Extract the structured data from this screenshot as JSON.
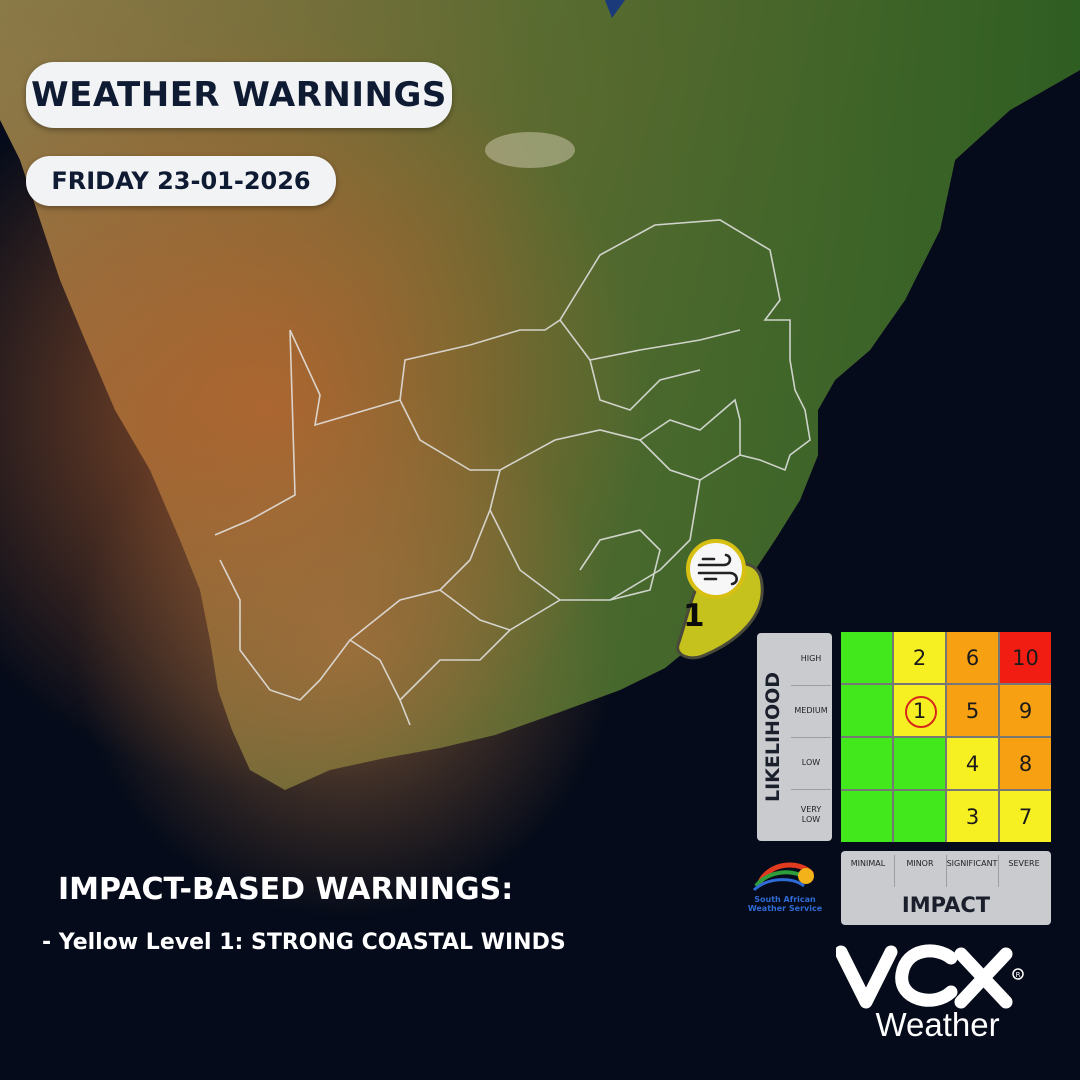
{
  "header": {
    "title": "WEATHER WARNINGS",
    "date": "FRIDAY 23-01-2026"
  },
  "warnings": {
    "heading": "IMPACT-BASED WARNINGS:",
    "items": [
      "- Yellow Level 1: STRONG COASTAL WINDS"
    ],
    "map_marker": {
      "level": "1",
      "icon": "wind-icon",
      "color": "#c6c21d",
      "region": "KwaZulu-Natal coast"
    }
  },
  "matrix": {
    "likelihood_title": "LIKELIHOOD",
    "impact_title": "IMPACT",
    "likelihood_levels": [
      "HIGH",
      "MEDIUM",
      "LOW",
      "VERY LOW"
    ],
    "impact_levels": [
      "MINIMAL",
      "MINOR",
      "SIGNIFICANT",
      "SEVERE"
    ],
    "rows": [
      [
        {
          "v": "",
          "c": "green"
        },
        {
          "v": "2",
          "c": "yellow"
        },
        {
          "v": "6",
          "c": "orange"
        },
        {
          "v": "10",
          "c": "red"
        }
      ],
      [
        {
          "v": "",
          "c": "green"
        },
        {
          "v": "1",
          "c": "yellow",
          "highlight": true
        },
        {
          "v": "5",
          "c": "orange"
        },
        {
          "v": "9",
          "c": "orange"
        }
      ],
      [
        {
          "v": "",
          "c": "green"
        },
        {
          "v": "",
          "c": "green"
        },
        {
          "v": "4",
          "c": "yellow"
        },
        {
          "v": "8",
          "c": "orange"
        }
      ],
      [
        {
          "v": "",
          "c": "green"
        },
        {
          "v": "",
          "c": "green"
        },
        {
          "v": "3",
          "c": "yellow"
        },
        {
          "v": "7",
          "c": "yellow"
        }
      ]
    ],
    "colors": {
      "green": "#43e81c",
      "yellow": "#f6f022",
      "orange": "#f7a011",
      "red": "#f21d12"
    }
  },
  "logos": {
    "saws": "South African Weather Service",
    "vox": "Weather"
  }
}
